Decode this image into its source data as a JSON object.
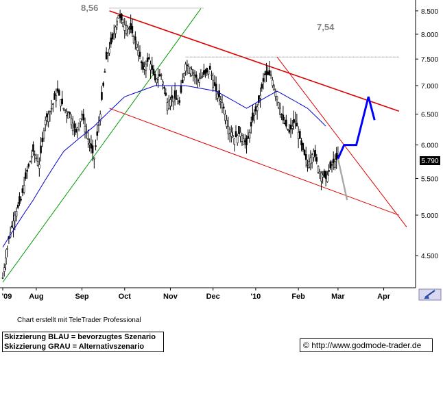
{
  "chart_data": {
    "type": "candlestick",
    "x_tick_labels": [
      "'09",
      "Aug",
      "Sep",
      "Oct",
      "Nov",
      "Dec",
      "'10",
      "Feb",
      "Mar",
      "Apr"
    ],
    "y_tick_labels": [
      "8.500",
      "8.000",
      "7.500",
      "7.000",
      "6.500",
      "6.000",
      "5.500",
      "5.000",
      "4.500"
    ],
    "y_ticks": [
      8.5,
      8.0,
      7.5,
      7.0,
      6.5,
      6.0,
      5.5,
      5.0,
      4.5
    ],
    "ylim": [
      4.2,
      8.62
    ],
    "scale": "log",
    "annotations": {
      "high_label": "8,56",
      "resistance_label": "7,54"
    },
    "last_price_label": "5.790",
    "last_price": 5.79,
    "grid": false,
    "colors": {
      "candles": "#000000",
      "moving_average": "#0000cc",
      "trend_channel": "#dd0000",
      "support": "#009900",
      "preferred_scenario": "#0000ff",
      "alternative_scenario": "#aaaaaa",
      "background": "#ffffff"
    },
    "series": [
      {
        "name": "Price",
        "close_path": [
          [
            0,
            4.25
          ],
          [
            4,
            4.7
          ],
          [
            8,
            5.0
          ],
          [
            12,
            5.2
          ],
          [
            16,
            5.6
          ],
          [
            20,
            5.9
          ],
          [
            24,
            5.7
          ],
          [
            28,
            6.4
          ],
          [
            32,
            6.6
          ],
          [
            36,
            6.9
          ],
          [
            40,
            6.6
          ],
          [
            44,
            6.5
          ],
          [
            48,
            6.2
          ],
          [
            52,
            6.5
          ],
          [
            56,
            6.1
          ],
          [
            60,
            5.8
          ],
          [
            64,
            6.5
          ],
          [
            68,
            7.5
          ],
          [
            72,
            7.9
          ],
          [
            76,
            8.4
          ],
          [
            80,
            8.2
          ],
          [
            84,
            8.1
          ],
          [
            88,
            7.8
          ],
          [
            92,
            7.3
          ],
          [
            96,
            7.5
          ],
          [
            100,
            7.1
          ],
          [
            104,
            7.2
          ],
          [
            108,
            6.7
          ],
          [
            112,
            6.8
          ],
          [
            116,
            6.7
          ],
          [
            120,
            7.4
          ],
          [
            124,
            7.3
          ],
          [
            128,
            7.1
          ],
          [
            132,
            7.2
          ],
          [
            136,
            7.3
          ],
          [
            140,
            6.9
          ],
          [
            144,
            6.7
          ],
          [
            148,
            6.3
          ],
          [
            152,
            6.1
          ],
          [
            156,
            6.2
          ],
          [
            160,
            6.0
          ],
          [
            164,
            6.4
          ],
          [
            168,
            6.7
          ],
          [
            172,
            7.2
          ],
          [
            176,
            7.2
          ],
          [
            180,
            6.8
          ],
          [
            184,
            6.4
          ],
          [
            188,
            6.2
          ],
          [
            192,
            6.4
          ],
          [
            196,
            6.0
          ],
          [
            200,
            5.7
          ],
          [
            204,
            5.9
          ],
          [
            208,
            5.6
          ],
          [
            212,
            5.5
          ],
          [
            216,
            5.7
          ],
          [
            220,
            5.8
          ]
        ]
      },
      {
        "name": "Moving average",
        "path": [
          [
            0,
            4.6
          ],
          [
            20,
            5.2
          ],
          [
            40,
            5.9
          ],
          [
            60,
            6.3
          ],
          [
            80,
            6.8
          ],
          [
            100,
            7.0
          ],
          [
            120,
            7.0
          ],
          [
            140,
            6.9
          ],
          [
            160,
            6.6
          ],
          [
            170,
            6.75
          ],
          [
            180,
            6.9
          ],
          [
            200,
            6.6
          ],
          [
            212,
            6.3
          ]
        ]
      }
    ],
    "scenarios": {
      "preferred": [
        [
          220,
          5.79
        ],
        [
          224,
          6.0
        ],
        [
          232,
          6.0
        ],
        [
          240,
          6.8
        ],
        [
          244,
          6.4
        ]
      ],
      "alternative": [
        [
          220,
          5.79
        ],
        [
          226,
          5.2
        ]
      ]
    },
    "lines": [
      {
        "kind": "resistance",
        "from": [
          70,
          8.5
        ],
        "to": [
          260,
          6.55
        ]
      },
      {
        "kind": "lower-channel",
        "from": [
          70,
          6.6
        ],
        "to": [
          260,
          5.0
        ]
      },
      {
        "kind": "short-trend",
        "from": [
          180,
          7.54
        ],
        "to": [
          265,
          4.85
        ]
      },
      {
        "kind": "support",
        "from": [
          0,
          4.2
        ],
        "to": [
          130,
          8.55
        ]
      }
    ]
  },
  "footer": {
    "created_with": "Chart erstellt mit TeleTrader Professional",
    "legend_blue": "Skizzierung BLAU = bevorzugtes Szenario",
    "legend_grey": "Skizzierung GRAU = Alternativszenario",
    "copyright_symbol": "©",
    "source_url": "http://www.godmode-trader.de"
  }
}
